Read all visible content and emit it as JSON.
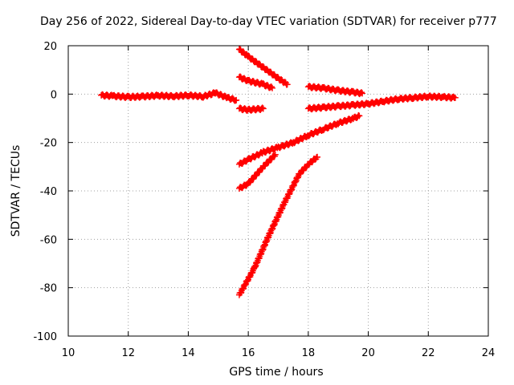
{
  "chart_data": {
    "type": "scatter",
    "title": "Day 256 of 2022, Sidereal Day-to-day VTEC variation (SDTVAR) for receiver p777",
    "xlabel": "GPS time / hours",
    "ylabel": "SDTVAR / TECUs",
    "xlim": [
      10,
      24
    ],
    "ylim": [
      -100,
      20
    ],
    "xticks": [
      10,
      12,
      14,
      16,
      18,
      20,
      22,
      24
    ],
    "yticks": [
      -100,
      -80,
      -60,
      -40,
      -20,
      0,
      20
    ],
    "grid": true,
    "marker": "plus",
    "color": "#ff0000",
    "series": [
      {
        "x": [
          11.1,
          11.5,
          12.0,
          12.5,
          13.0,
          13.5,
          14.0,
          14.5,
          14.9,
          15.3,
          15.6
        ],
        "y": [
          -0.5,
          -0.8,
          -1.2,
          -1.0,
          -0.6,
          -0.9,
          -0.5,
          -1.0,
          0.5,
          -1.5,
          -2.5
        ]
      },
      {
        "x": [
          15.7,
          16.0,
          16.5,
          17.0,
          17.3
        ],
        "y": [
          18.5,
          15.5,
          11,
          6.5,
          4
        ]
      },
      {
        "x": [
          15.7,
          16.0,
          16.5,
          16.8
        ],
        "y": [
          7,
          5.5,
          4,
          2.5
        ]
      },
      {
        "x": [
          15.7,
          16.0,
          16.5
        ],
        "y": [
          -6,
          -6.5,
          -6
        ]
      },
      {
        "x": [
          18.0,
          18.5,
          19.0,
          19.5,
          19.8
        ],
        "y": [
          3,
          2.5,
          1.5,
          0.8,
          0.3
        ]
      },
      {
        "x": [
          18.0,
          18.5,
          19.0,
          19.5,
          20.0,
          20.5,
          21.0,
          21.5,
          22.0,
          22.5,
          22.9
        ],
        "y": [
          -6,
          -5.5,
          -5,
          -4.5,
          -4,
          -3,
          -2,
          -1.5,
          -1,
          -1.2,
          -1.5
        ]
      },
      {
        "x": [
          15.7,
          16.0,
          16.5,
          17.0,
          17.5,
          18.0,
          18.5,
          19.0,
          19.5,
          19.7
        ],
        "y": [
          -29,
          -27,
          -24,
          -22,
          -20,
          -17,
          -14.5,
          -12,
          -10,
          -9
        ]
      },
      {
        "x": [
          15.7,
          16.0,
          16.5,
          16.9
        ],
        "y": [
          -39,
          -37,
          -30,
          -25
        ]
      },
      {
        "x": [
          15.7,
          16.2,
          16.7,
          17.2,
          17.7,
          18.0,
          18.3
        ],
        "y": [
          -83,
          -72,
          -58,
          -45,
          -33,
          -29,
          -26
        ]
      }
    ]
  }
}
